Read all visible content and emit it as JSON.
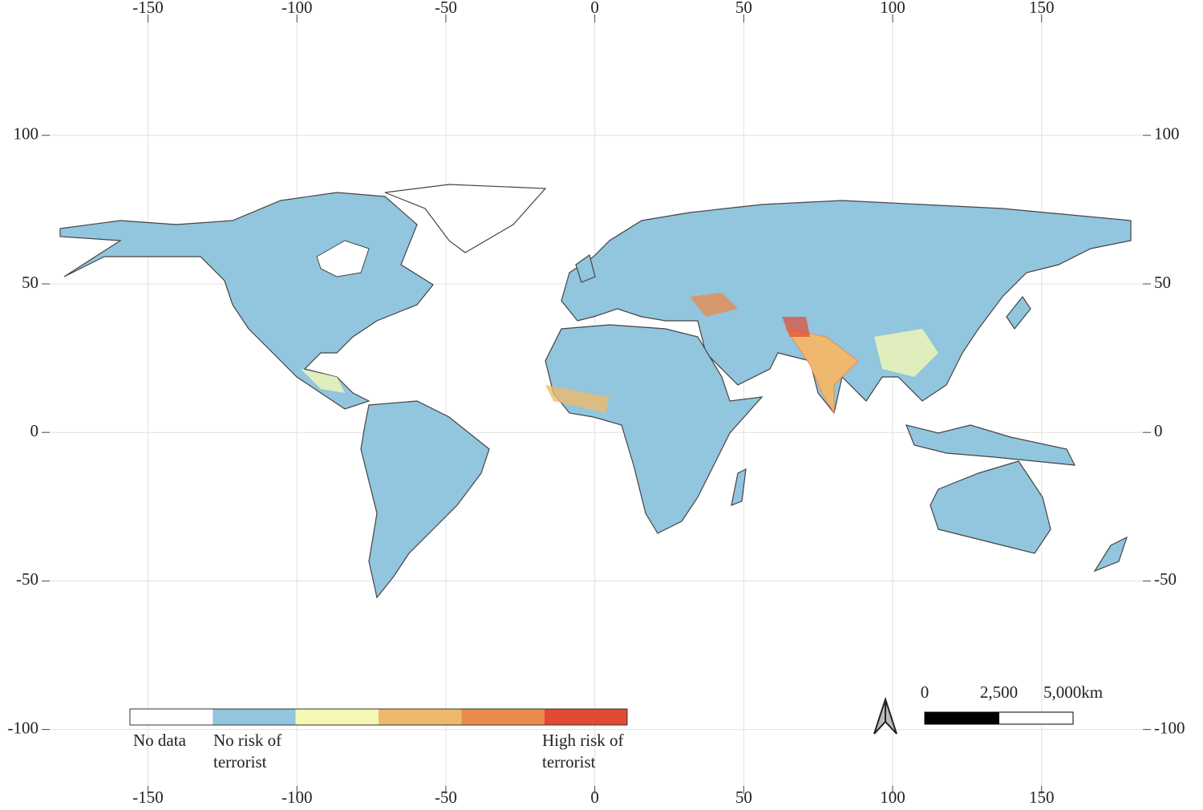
{
  "map": {
    "xlim": [
      -183,
      184
    ],
    "ylim": [
      -119,
      138
    ],
    "xticks": [
      -150,
      -100,
      -50,
      0,
      50,
      100,
      150
    ],
    "yticks": [
      -100,
      -50,
      0,
      50,
      100
    ],
    "grid": true,
    "legend": {
      "colors": [
        "#ffffff",
        "#92c5de",
        "#f4f8b4",
        "#eeb96e",
        "#e98b4f",
        "#e34a33"
      ],
      "labels": [
        "No data",
        "No risk of terrorist",
        "High risk of terrorist"
      ]
    },
    "scale_bar": {
      "ticks": [
        0,
        {
          "value": 2500,
          "label": "2,500"
        },
        {
          "value": 5000,
          "label": "5,000km"
        }
      ]
    }
  }
}
